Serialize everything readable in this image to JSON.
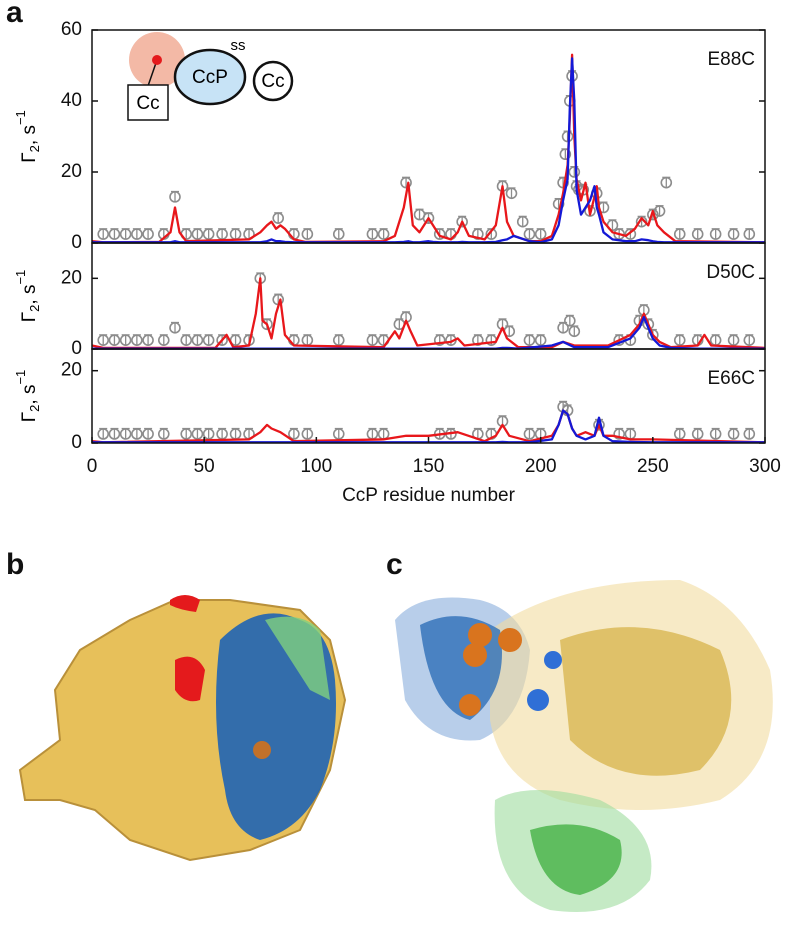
{
  "panel_labels": [
    "a",
    "b",
    "c"
  ],
  "inset": {
    "left": "Cc",
    "middle": "CcP",
    "bond": "ss",
    "right": "Cc"
  },
  "chart_data": [
    {
      "type": "line",
      "label": "E88C",
      "ylabel": {
        "symbol": "Γ",
        "sub": "2",
        "unit": ", s",
        "sup": "−1"
      },
      "xlim": [
        0,
        300
      ],
      "ylim": [
        0,
        60
      ],
      "yticks": [
        0,
        20,
        40,
        60
      ],
      "x": [
        0,
        5,
        30,
        35,
        37,
        39,
        42,
        70,
        75,
        78,
        80,
        82,
        84,
        86,
        90,
        95,
        130,
        135,
        139,
        141,
        143,
        146,
        150,
        152,
        155,
        160,
        163,
        165,
        168,
        175,
        180,
        183,
        185,
        188,
        195,
        200,
        205,
        208,
        210,
        212,
        213,
        214,
        215,
        216,
        218,
        220,
        222,
        224,
        225,
        226,
        228,
        232,
        238,
        242,
        245,
        248,
        250,
        252,
        255,
        260,
        300
      ],
      "series": [
        {
          "color": "#e8171b",
          "values": [
            0.5,
            0.2,
            0.3,
            3,
            10,
            3,
            0.5,
            1,
            3,
            5,
            6,
            4,
            5,
            4,
            1,
            0.3,
            0.5,
            2,
            10,
            17,
            5,
            3,
            7,
            5,
            2,
            1,
            3,
            6,
            2,
            1,
            5,
            16,
            6,
            2,
            0.5,
            0.5,
            2,
            8,
            14,
            22,
            35,
            53,
            30,
            18,
            12,
            17,
            8,
            13,
            16,
            10,
            6,
            3,
            2,
            4,
            7,
            5,
            9,
            5,
            3,
            0.5,
            0.2
          ]
        },
        {
          "color": "#1419d6",
          "values": [
            0.2,
            0.2,
            0.2,
            0.2,
            0.5,
            0.2,
            0.2,
            0.2,
            0.2,
            0.5,
            1,
            0.5,
            0.5,
            0.3,
            0.2,
            0.2,
            0.2,
            0.2,
            0.3,
            0.5,
            0.2,
            0.2,
            0.5,
            0.3,
            0.2,
            0.2,
            0.2,
            0.3,
            0.2,
            0.2,
            0.3,
            0.8,
            1,
            2,
            0.5,
            0.2,
            1,
            5,
            12,
            18,
            38,
            52,
            40,
            15,
            8,
            10,
            12,
            16,
            10,
            8,
            3,
            1,
            0.5,
            0.5,
            1,
            0.8,
            0.5,
            0.3,
            0.2,
            0.2,
            0.2
          ]
        }
      ],
      "points": {
        "color": "#8c8c8c",
        "x": [
          5,
          10,
          15,
          20,
          25,
          32,
          42,
          47,
          52,
          58,
          64,
          70,
          90,
          96,
          110,
          125,
          130,
          155,
          160,
          172,
          178,
          195,
          200,
          235,
          240,
          262,
          270,
          278,
          286,
          293,
          37,
          83,
          140,
          146,
          150,
          165,
          183,
          187,
          192,
          208,
          210,
          211,
          212,
          213,
          214,
          215,
          216,
          217,
          219,
          222,
          225,
          228,
          232,
          245,
          250,
          253,
          256
        ],
        "values": [
          2.5,
          2.5,
          2.5,
          2.5,
          2.5,
          2.5,
          2.5,
          2.5,
          2.5,
          2.5,
          2.5,
          2.5,
          2.5,
          2.5,
          2.5,
          2.5,
          2.5,
          2.5,
          2.5,
          2.5,
          2.5,
          2.5,
          2.5,
          2.5,
          2.5,
          2.5,
          2.5,
          2.5,
          2.5,
          2.5,
          13,
          7,
          17,
          8,
          7,
          6,
          16,
          14,
          6,
          11,
          17,
          25,
          30,
          40,
          47,
          20,
          16,
          15,
          15,
          9,
          14,
          10,
          5,
          6,
          8,
          9,
          17
        ],
        "error": 1.5
      }
    },
    {
      "type": "line",
      "label": "D50C",
      "ylabel": {
        "symbol": "Γ",
        "sub": "2",
        "unit": ", s",
        "sup": "−1"
      },
      "xlim": [
        0,
        300
      ],
      "ylim": [
        0,
        30
      ],
      "yticks": [
        0,
        20
      ],
      "x": [
        0,
        5,
        55,
        60,
        63,
        70,
        73,
        75,
        76,
        78,
        80,
        82,
        84,
        86,
        90,
        130,
        135,
        137,
        140,
        142,
        145,
        160,
        163,
        166,
        180,
        183,
        185,
        190,
        205,
        210,
        215,
        230,
        240,
        244,
        246,
        248,
        250,
        253,
        258,
        270,
        273,
        276,
        300
      ],
      "series": [
        {
          "color": "#e8171b",
          "values": [
            1,
            0.3,
            0.3,
            4,
            0.5,
            1,
            10,
            20,
            8,
            7,
            3,
            10,
            14,
            4,
            1,
            0.5,
            5,
            3,
            8,
            5,
            1,
            2,
            3,
            1,
            2,
            6,
            3,
            0.5,
            0.5,
            2,
            1,
            1,
            4,
            7,
            10,
            7,
            4,
            2,
            0.5,
            1,
            4,
            1,
            0.3
          ]
        },
        {
          "color": "#1419d6",
          "values": [
            0.1,
            0.1,
            0.1,
            0.1,
            0.1,
            0.1,
            0.1,
            0.1,
            0.1,
            0.1,
            0.1,
            0.1,
            0.1,
            0.1,
            0.1,
            0.1,
            0.1,
            0.1,
            0.1,
            0.1,
            0.1,
            0.1,
            0.1,
            0.1,
            0.1,
            0.3,
            0.3,
            0.1,
            1,
            2,
            0.5,
            0.5,
            3,
            6,
            9,
            6,
            3,
            1,
            0.3,
            0.1,
            0.1,
            0.1,
            0.1
          ]
        }
      ],
      "points": {
        "color": "#8c8c8c",
        "x": [
          5,
          10,
          15,
          20,
          25,
          32,
          42,
          47,
          52,
          58,
          64,
          70,
          90,
          96,
          110,
          125,
          130,
          155,
          160,
          172,
          178,
          195,
          200,
          235,
          240,
          262,
          270,
          278,
          286,
          293,
          37,
          75,
          78,
          83,
          137,
          140,
          183,
          186,
          210,
          213,
          215,
          244,
          246,
          248,
          250
        ],
        "values": [
          2.5,
          2.5,
          2.5,
          2.5,
          2.5,
          2.5,
          2.5,
          2.5,
          2.5,
          2.5,
          2.5,
          2.5,
          2.5,
          2.5,
          2.5,
          2.5,
          2.5,
          2.5,
          2.5,
          2.5,
          2.5,
          2.5,
          2.5,
          2.5,
          2.5,
          2.5,
          2.5,
          2.5,
          2.5,
          2.5,
          6,
          20,
          7,
          14,
          7,
          9,
          7,
          5,
          6,
          8,
          5,
          8,
          11,
          7,
          4
        ],
        "error": 1.5
      }
    },
    {
      "type": "line",
      "label": "E66C",
      "ylabel": {
        "symbol": "Γ",
        "sub": "2",
        "unit": ", s",
        "sup": "−1"
      },
      "xlabel": "CcP residue number",
      "xlim": [
        0,
        300
      ],
      "ylim": [
        0,
        26
      ],
      "yticks": [
        0,
        20
      ],
      "xticks": [
        0,
        50,
        100,
        150,
        200,
        250,
        300
      ],
      "x": [
        0,
        5,
        70,
        75,
        78,
        80,
        84,
        90,
        130,
        140,
        150,
        163,
        175,
        180,
        183,
        186,
        195,
        205,
        208,
        210,
        212,
        214,
        216,
        220,
        224,
        226,
        228,
        232,
        240,
        250,
        300
      ],
      "series": [
        {
          "color": "#e8171b",
          "values": [
            0.5,
            0.2,
            1,
            3,
            5,
            4,
            3,
            0.5,
            1,
            2,
            2,
            3,
            0.5,
            2,
            5,
            2,
            0.5,
            2,
            5,
            9,
            8,
            4,
            2,
            3,
            2,
            5,
            2,
            2,
            1,
            1,
            0.2
          ]
        },
        {
          "color": "#1419d6",
          "values": [
            0.2,
            0.2,
            0.2,
            0.2,
            0.2,
            0.2,
            0.2,
            0.2,
            0.2,
            0.2,
            0.2,
            0.2,
            0.2,
            0.2,
            0.3,
            0.2,
            0.2,
            1,
            5,
            9,
            8,
            4,
            2,
            1,
            2,
            7,
            2,
            0.5,
            0.3,
            0.2,
            0.2
          ]
        }
      ],
      "points": {
        "color": "#8c8c8c",
        "x": [
          5,
          10,
          15,
          20,
          25,
          32,
          42,
          47,
          52,
          58,
          64,
          70,
          90,
          96,
          110,
          125,
          130,
          155,
          160,
          172,
          178,
          195,
          200,
          235,
          240,
          262,
          270,
          278,
          286,
          293,
          183,
          210,
          212,
          226
        ],
        "values": [
          2.5,
          2.5,
          2.5,
          2.5,
          2.5,
          2.5,
          2.5,
          2.5,
          2.5,
          2.5,
          2.5,
          2.5,
          2.5,
          2.5,
          2.5,
          2.5,
          2.5,
          2.5,
          2.5,
          2.5,
          2.5,
          2.5,
          2.5,
          2.5,
          2.5,
          2.5,
          2.5,
          2.5,
          2.5,
          2.5,
          6,
          10,
          9,
          5
        ],
        "error": 1.5
      }
    }
  ]
}
